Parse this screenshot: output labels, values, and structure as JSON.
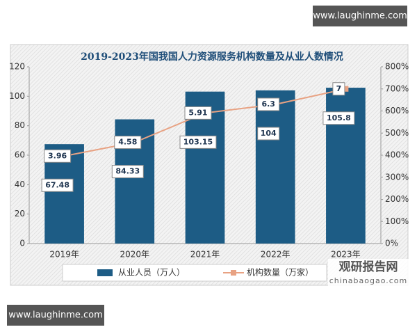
{
  "chart_data": {
    "type": "bar-line",
    "title": "2019-2023年国我国人力资源服务机构数量及从业人数情况",
    "categories": [
      "2019年",
      "2020年",
      "2021年",
      "2022年",
      "2023年"
    ],
    "series": [
      {
        "name": "从业人员（万人）",
        "type": "bar",
        "color": "#1d5c85",
        "values": [
          67.48,
          84.33,
          103.15,
          104,
          105.8
        ]
      },
      {
        "name": "机构数量（万家）",
        "type": "line",
        "axis": "y2",
        "color": "#e8a283",
        "values": [
          3.96,
          4.58,
          5.91,
          6.3,
          7
        ]
      }
    ],
    "ylim": [
      0,
      120
    ],
    "yticks": [
      0,
      20,
      40,
      60,
      80,
      100,
      120
    ],
    "y2lim": [
      0,
      8
    ],
    "y2ticks": [
      {
        "value": 0,
        "label": "0%"
      },
      {
        "value": 1,
        "label": "100%"
      },
      {
        "value": 2,
        "label": "200%"
      },
      {
        "value": 3,
        "label": "300%"
      },
      {
        "value": 4,
        "label": "400%"
      },
      {
        "value": 5,
        "label": "500%"
      },
      {
        "value": 6,
        "label": "600%"
      },
      {
        "value": 7,
        "label": "700%"
      },
      {
        "value": 8,
        "label": "800%"
      }
    ],
    "legend": "bottom"
  },
  "watermark_top": "www.laughinme.com",
  "watermark_bottom": "www.laughinme.com",
  "logo": {
    "name": "观研报告网",
    "url": "chinabaogao.com"
  }
}
